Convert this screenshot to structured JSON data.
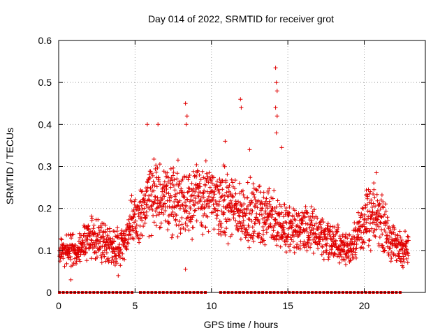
{
  "chart_data": {
    "type": "scatter",
    "title": "Day 014 of 2022, SRMTID for receiver grot",
    "xlabel": "GPS time / hours",
    "ylabel": "SRMTID / TECUs",
    "xlim": [
      0,
      24
    ],
    "ylim": [
      0,
      0.6
    ],
    "xticks": [
      0,
      5,
      10,
      15,
      20
    ],
    "xtick_labels": [
      "0",
      "5",
      "10",
      "15",
      "20"
    ],
    "yticks": [
      0,
      0.1,
      0.2,
      0.3,
      0.4,
      0.5,
      0.6
    ],
    "ytick_labels": [
      "0",
      "0.1",
      "0.2",
      "0.3",
      "0.4",
      "0.5",
      "0.6"
    ],
    "grid": true,
    "marker": "+",
    "color": "#e00000",
    "trend": [
      [
        0.0,
        0.1
      ],
      [
        1.0,
        0.1
      ],
      [
        2.0,
        0.13
      ],
      [
        3.0,
        0.12
      ],
      [
        4.0,
        0.11
      ],
      [
        5.0,
        0.17
      ],
      [
        6.0,
        0.22
      ],
      [
        7.0,
        0.23
      ],
      [
        8.0,
        0.22
      ],
      [
        9.0,
        0.23
      ],
      [
        10.0,
        0.22
      ],
      [
        11.0,
        0.21
      ],
      [
        12.0,
        0.19
      ],
      [
        13.0,
        0.19
      ],
      [
        14.0,
        0.18
      ],
      [
        15.0,
        0.15
      ],
      [
        16.0,
        0.15
      ],
      [
        17.0,
        0.14
      ],
      [
        18.0,
        0.12
      ],
      [
        19.0,
        0.1
      ],
      [
        20.0,
        0.17
      ],
      [
        21.0,
        0.18
      ],
      [
        22.0,
        0.11
      ],
      [
        22.9,
        0.1
      ]
    ],
    "spikes": [
      [
        8.3,
        0.45
      ],
      [
        8.4,
        0.42
      ],
      [
        8.35,
        0.4
      ],
      [
        11.9,
        0.46
      ],
      [
        11.95,
        0.44
      ],
      [
        14.2,
        0.535
      ],
      [
        14.25,
        0.5
      ],
      [
        14.3,
        0.48
      ],
      [
        14.2,
        0.44
      ],
      [
        14.3,
        0.42
      ],
      [
        14.25,
        0.38
      ],
      [
        6.5,
        0.4
      ],
      [
        5.8,
        0.4
      ],
      [
        14.6,
        0.345
      ],
      [
        12.5,
        0.34
      ],
      [
        10.9,
        0.36
      ],
      [
        20.8,
        0.285
      ],
      [
        8.3,
        0.055
      ],
      [
        0.8,
        0.03
      ],
      [
        3.9,
        0.04
      ]
    ],
    "zero_markers": [
      0.05,
      0.3,
      0.55,
      0.8,
      1.05,
      1.3,
      1.55,
      1.8,
      2.05,
      2.3,
      2.55,
      2.8,
      3.05,
      3.3,
      3.55,
      3.8,
      4.05,
      4.3,
      4.55,
      4.8,
      5.35,
      5.6,
      5.85,
      6.1,
      6.35,
      6.6,
      6.85,
      7.1,
      7.35,
      7.6,
      7.85,
      8.1,
      8.35,
      8.6,
      8.85,
      9.1,
      9.35,
      9.6,
      10.6,
      10.85,
      11.1,
      11.35,
      11.6,
      11.85,
      12.1,
      12.35,
      12.6,
      12.85,
      13.1,
      13.35,
      13.6,
      13.85,
      14.1,
      14.35,
      14.6,
      14.85,
      15.1,
      15.35,
      15.6,
      15.85,
      16.1,
      16.35,
      16.6,
      16.85,
      17.1,
      17.35,
      17.6,
      17.85,
      18.1,
      18.35,
      18.6,
      18.85,
      19.1,
      19.35,
      19.6,
      19.85,
      20.1,
      20.35,
      20.6,
      20.85,
      21.1,
      21.35,
      21.6,
      21.85,
      22.1,
      22.35
    ]
  }
}
